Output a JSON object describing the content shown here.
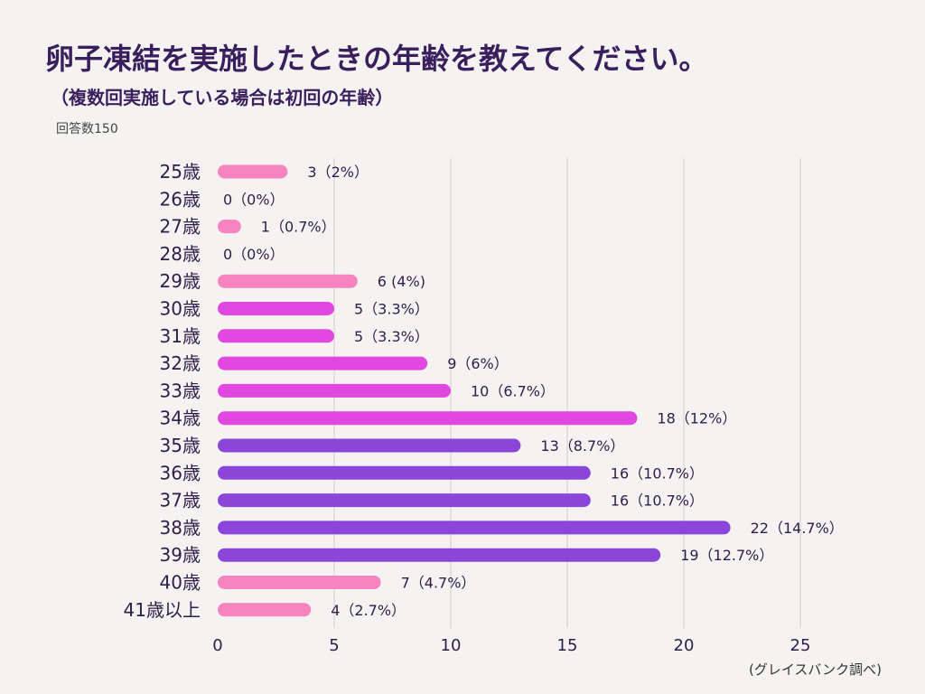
{
  "title": "卵子凍結を実施したときの年齢を教えてください。",
  "subtitle": "（複数回実施している場合は初回の年齢）",
  "respondents": "回答数150",
  "source": "(グレイスバンク調べ)",
  "colors": {
    "pink": "#f783bf",
    "magenta": "#e048e0",
    "purple": "#8b46d9",
    "grid": "#cfcfcf",
    "text": "#2f1d4a"
  },
  "chart_data": {
    "type": "bar",
    "orientation": "horizontal",
    "title": "卵子凍結を実施したときの年齢を教えてください。",
    "xlabel": "",
    "ylabel": "",
    "xlim": [
      0,
      25
    ],
    "xticks": [
      0,
      5,
      10,
      15,
      20,
      25
    ],
    "grid": true,
    "categories": [
      "25歳",
      "26歳",
      "27歳",
      "28歳",
      "29歳",
      "30歳",
      "31歳",
      "32歳",
      "33歳",
      "34歳",
      "35歳",
      "36歳",
      "37歳",
      "38歳",
      "39歳",
      "40歳",
      "41歳以上"
    ],
    "values": [
      3,
      0,
      1,
      0,
      6,
      5,
      5,
      9,
      10,
      18,
      13,
      16,
      16,
      22,
      19,
      7,
      4
    ],
    "labels": [
      "3（2%）",
      "0（0%）",
      "1（0.7%）",
      "0（0%）",
      "6 (4%)",
      "5（3.3%）",
      "5（3.3%）",
      "9（6%）",
      "10（6.7%）",
      "18（12%）",
      "13（8.7%）",
      "16（10.7%）",
      "16（10.7%）",
      "22（14.7%）",
      "19（12.7%）",
      "7（4.7%）",
      "4（2.7%）"
    ],
    "bar_color_keys": [
      "pink",
      "pink",
      "pink",
      "pink",
      "pink",
      "magenta",
      "magenta",
      "magenta",
      "magenta",
      "magenta",
      "purple",
      "purple",
      "purple",
      "purple",
      "purple",
      "pink",
      "pink"
    ]
  }
}
